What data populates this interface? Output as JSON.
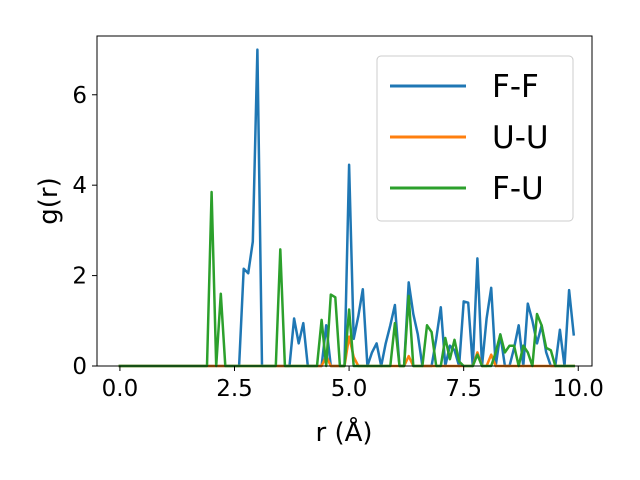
{
  "chart_data": {
    "type": "line",
    "title": "",
    "xlabel": "r (Å)",
    "ylabel": "g(r)",
    "xlim": [
      -0.5,
      10.3
    ],
    "ylim": [
      0,
      7.3
    ],
    "xticks": [
      0.0,
      2.5,
      5.0,
      7.5,
      10.0
    ],
    "xtick_labels": [
      "0.0",
      "2.5",
      "5.0",
      "7.5",
      "10.0"
    ],
    "yticks": [
      0,
      2,
      4,
      6
    ],
    "ytick_labels": [
      "0",
      "2",
      "4",
      "6"
    ],
    "grid": false,
    "legend_position": "top-right",
    "series": [
      {
        "name": "F-F",
        "color": "#1f77b4",
        "x": [
          0,
          2.6,
          2.7,
          2.8,
          2.9,
          3.0,
          3.1,
          3.2,
          3.7,
          3.8,
          3.9,
          4.0,
          4.1,
          4.2,
          4.3,
          4.4,
          4.5,
          4.6,
          4.7,
          4.8,
          4.9,
          5.0,
          5.1,
          5.2,
          5.3,
          5.4,
          5.5,
          5.6,
          5.7,
          5.8,
          5.9,
          6.0,
          6.1,
          6.2,
          6.3,
          6.4,
          6.5,
          6.6,
          6.7,
          6.8,
          6.9,
          7.0,
          7.1,
          7.2,
          7.3,
          7.4,
          7.5,
          7.6,
          7.7,
          7.8,
          7.9,
          8.0,
          8.1,
          8.2,
          8.3,
          8.4,
          8.5,
          8.6,
          8.7,
          8.8,
          8.9,
          9.0,
          9.1,
          9.2,
          9.3,
          9.4,
          9.5,
          9.6,
          9.7,
          9.8,
          9.9
        ],
        "y": [
          0,
          0,
          2.15,
          2.05,
          2.75,
          7.0,
          0,
          0,
          0,
          1.05,
          0.5,
          0.95,
          0,
          0,
          0,
          0,
          0.9,
          0,
          0,
          0,
          0,
          4.45,
          0.6,
          1.1,
          1.7,
          0,
          0.3,
          0.5,
          0,
          0.5,
          0.9,
          1.35,
          0,
          0,
          1.85,
          1.15,
          0.7,
          0,
          0,
          0,
          0.6,
          1.3,
          0,
          0.45,
          0.35,
          0,
          1.43,
          1.4,
          0,
          2.38,
          0,
          1.05,
          1.73,
          0,
          0.7,
          0,
          0,
          0.4,
          0.9,
          0,
          1.38,
          1.0,
          0.5,
          0.9,
          0.3,
          0,
          0,
          0.8,
          0,
          1.68,
          0.7
        ]
      },
      {
        "name": "U-U",
        "color": "#ff7f0e",
        "x": [
          0,
          4.4,
          4.5,
          4.6,
          4.7,
          4.9,
          5.0,
          5.1,
          5.2,
          6.1,
          6.2,
          6.3,
          6.4,
          7.6,
          7.7,
          7.8,
          7.9,
          8.0,
          8.1,
          8.2,
          9.9
        ],
        "y": [
          0,
          0,
          0.22,
          0,
          0,
          0,
          0.65,
          0.2,
          0,
          0,
          0,
          0.22,
          0,
          0,
          0,
          0.3,
          0,
          0,
          0.25,
          0,
          0
        ]
      },
      {
        "name": "F-U",
        "color": "#2ca02c",
        "x": [
          0,
          1.9,
          2.0,
          2.1,
          2.2,
          2.3,
          3.4,
          3.5,
          3.6,
          4.3,
          4.4,
          4.5,
          4.6,
          4.7,
          4.8,
          4.9,
          5.0,
          5.1,
          5.2,
          5.3,
          5.4,
          5.9,
          6.0,
          6.1,
          6.2,
          6.3,
          6.4,
          6.5,
          6.6,
          6.7,
          6.8,
          6.9,
          7.0,
          7.1,
          7.2,
          7.3,
          7.4,
          7.5,
          7.6,
          7.7,
          7.8,
          7.9,
          8.0,
          8.1,
          8.2,
          8.3,
          8.4,
          8.5,
          8.6,
          8.7,
          8.8,
          8.9,
          9.0,
          9.1,
          9.2,
          9.3,
          9.4,
          9.5,
          9.9
        ],
        "y": [
          0,
          0,
          3.85,
          0,
          1.6,
          0,
          0,
          2.58,
          0,
          0,
          1.02,
          0,
          1.58,
          1.52,
          0,
          0,
          1.25,
          0,
          0,
          0,
          0,
          0,
          0.95,
          0,
          0,
          1.55,
          0,
          0,
          0,
          0.9,
          0.75,
          0,
          0,
          0.62,
          0.15,
          0.58,
          0.1,
          0,
          0,
          0,
          0.25,
          0,
          0,
          0,
          0.3,
          0.7,
          0.3,
          0.45,
          0.45,
          0,
          0.45,
          0.3,
          0,
          1.15,
          0.9,
          0.4,
          0.35,
          0,
          0
        ]
      }
    ]
  }
}
